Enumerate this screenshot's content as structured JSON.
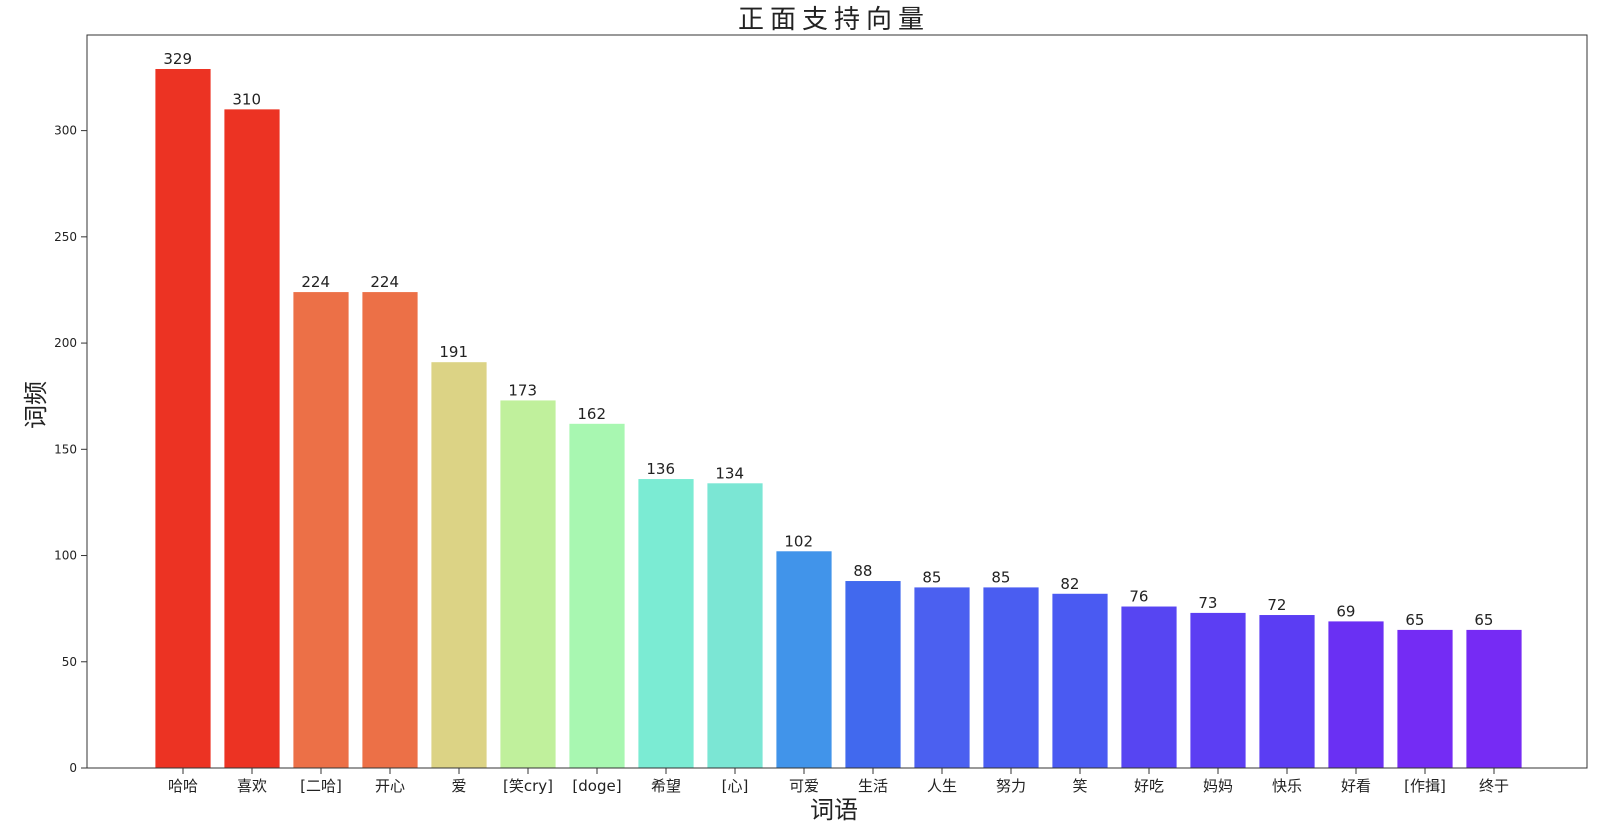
{
  "chart_data": {
    "type": "bar",
    "title": "正面支持向量",
    "xlabel": "词语",
    "ylabel": "词频",
    "categories": [
      "哈哈",
      "喜欢",
      "[二哈]",
      "开心",
      "爱",
      "[笑cry]",
      "[doge]",
      "希望",
      "[心]",
      "可爱",
      "生活",
      "人生",
      "努力",
      "笑",
      "好吃",
      "妈妈",
      "快乐",
      "好看",
      "[作揖]",
      "终于"
    ],
    "values": [
      329,
      310,
      224,
      224,
      191,
      173,
      162,
      136,
      134,
      102,
      88,
      85,
      85,
      82,
      76,
      73,
      72,
      69,
      65,
      65
    ],
    "colors": [
      "#ec3323",
      "#ec3323",
      "#ec7047",
      "#ec7047",
      "#dcd385",
      "#c0f09c",
      "#a8f7b1",
      "#7bebd3",
      "#7be6d4",
      "#4194ea",
      "#4169ee",
      "#4b60f0",
      "#4a5df1",
      "#4a5af2",
      "#5745f2",
      "#5c3ef3",
      "#5b3df3",
      "#6a30f3",
      "#742cf4",
      "#762bf4"
    ],
    "yticks": [
      0,
      50,
      100,
      150,
      200,
      250,
      300
    ],
    "ylim": [
      0,
      345
    ],
    "grid": false,
    "legend": "none"
  }
}
